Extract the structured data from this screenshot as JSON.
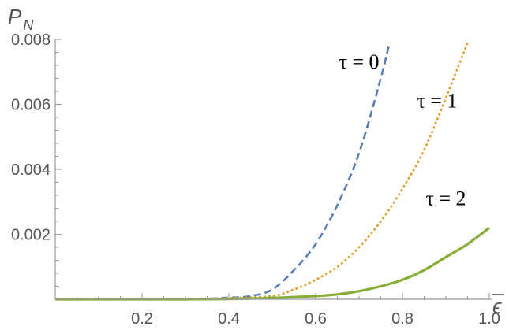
{
  "chart_data": {
    "type": "line",
    "title": "",
    "xlabel": "ϵ",
    "ylabel": {
      "main": "P",
      "sub": "N"
    },
    "xlim": [
      0,
      1.0
    ],
    "ylim": [
      0,
      0.008
    ],
    "x_ticks": [
      {
        "value": 0.2,
        "label": "0.2"
      },
      {
        "value": 0.4,
        "label": "0.4"
      },
      {
        "value": 0.6,
        "label": "0.6"
      },
      {
        "value": 0.8,
        "label": "0.8"
      },
      {
        "value": 1.0,
        "label": "1.0"
      }
    ],
    "y_ticks": [
      {
        "value": 0.002,
        "label": "0.002"
      },
      {
        "value": 0.004,
        "label": "0.004"
      },
      {
        "value": 0.006,
        "label": "0.006"
      },
      {
        "value": 0.008,
        "label": "0.008"
      }
    ],
    "grid": false,
    "series": [
      {
        "color": "#5a7db6",
        "dash": "dashed",
        "x": [
          0.0,
          0.3,
          0.4,
          0.45,
          0.5,
          0.55,
          0.6,
          0.65,
          0.7,
          0.75,
          0.77
        ],
        "y": [
          0.0,
          1e-05,
          5e-05,
          0.0001,
          0.0003,
          0.0009,
          0.0017,
          0.0029,
          0.0045,
          0.0068,
          0.0079
        ]
      },
      {
        "color": "#e0a030",
        "dash": "dotted",
        "x": [
          0.0,
          0.3,
          0.4,
          0.5,
          0.55,
          0.6,
          0.65,
          0.7,
          0.75,
          0.8,
          0.85,
          0.9,
          0.95
        ],
        "y": [
          0.0,
          1e-05,
          4e-05,
          0.0001,
          0.0003,
          0.0006,
          0.001,
          0.0016,
          0.0024,
          0.0034,
          0.0046,
          0.0062,
          0.0079
        ]
      },
      {
        "color": "#86ad34",
        "dash": "solid",
        "x": [
          0.0,
          0.3,
          0.4,
          0.5,
          0.6,
          0.65,
          0.7,
          0.75,
          0.8,
          0.85,
          0.9,
          0.95,
          1.0
        ],
        "y": [
          0.0,
          0.0,
          1e-05,
          4e-05,
          0.0001,
          0.00015,
          0.00025,
          0.0004,
          0.0006,
          0.0009,
          0.0013,
          0.0017,
          0.0022
        ]
      }
    ],
    "annotations": [
      {
        "text": "τ = 0",
        "x": 0.7,
        "y": 0.0071
      },
      {
        "text": "τ = 1",
        "x": 0.88,
        "y": 0.0059
      },
      {
        "text": "τ = 2",
        "x": 0.9,
        "y": 0.0029
      }
    ]
  }
}
